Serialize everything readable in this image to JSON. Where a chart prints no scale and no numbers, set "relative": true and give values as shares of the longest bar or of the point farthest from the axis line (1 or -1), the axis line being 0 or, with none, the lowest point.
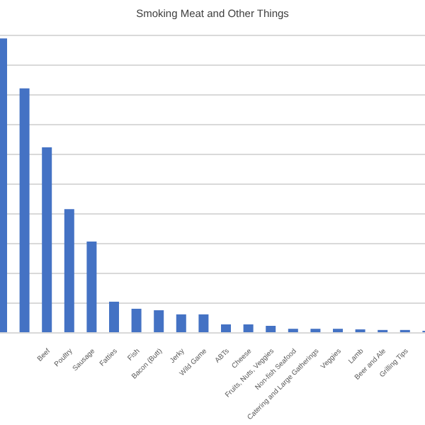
{
  "chart_data": {
    "type": "bar",
    "title": "Smoking Meat and Other Things",
    "relative": true,
    "grid": "y",
    "color": "#4472c4",
    "categories": [
      null,
      null,
      "Beef",
      "Poultry",
      "Sausage",
      "Fatties",
      "Fish",
      "Bacon (Butt)",
      "Jerky",
      "Wild Game",
      "ABTs",
      "Cheese",
      "Fruits, Nuts, Veggies",
      "Non-fish Seafood",
      "Catering and Large Gatherings",
      "Veggies",
      "Lamb",
      "Beer and Ale",
      "Grilling Tips",
      null
    ],
    "values": [
      1,
      0.83,
      0.63,
      0.42,
      0.31,
      0.106,
      0.082,
      0.077,
      0.063,
      0.063,
      0.029,
      0.029,
      0.024,
      0.014,
      0.014,
      0.014,
      0.012,
      0.01,
      0.01,
      0.007
    ]
  }
}
